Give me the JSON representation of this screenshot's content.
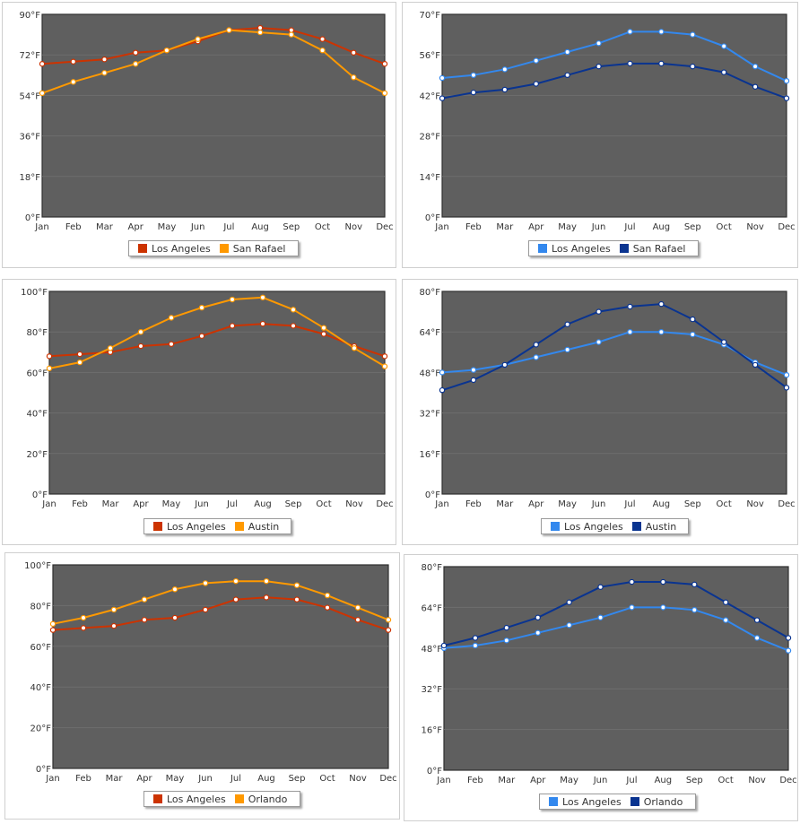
{
  "chart_data": [
    {
      "type": "line",
      "categories": [
        "Jan",
        "Feb",
        "Mar",
        "Apr",
        "May",
        "Jun",
        "Jul",
        "Aug",
        "Sep",
        "Oct",
        "Nov",
        "Dec"
      ],
      "ylim": [
        0,
        90
      ],
      "yticks": [
        "0°F",
        "18°F",
        "36°F",
        "54°F",
        "72°F",
        "90°F"
      ],
      "series": [
        {
          "name": "Los Angeles",
          "color": "#cc3300",
          "values": [
            68,
            69,
            70,
            73,
            74,
            78,
            83,
            84,
            83,
            79,
            73,
            68
          ]
        },
        {
          "name": "San Rafael",
          "color": "#ff9900",
          "values": [
            55,
            60,
            64,
            68,
            74,
            79,
            83,
            82,
            81,
            74,
            62,
            55
          ]
        }
      ]
    },
    {
      "type": "line",
      "categories": [
        "Jan",
        "Feb",
        "Mar",
        "Apr",
        "May",
        "Jun",
        "Jul",
        "Aug",
        "Sep",
        "Oct",
        "Nov",
        "Dec"
      ],
      "ylim": [
        0,
        70
      ],
      "yticks": [
        "0°F",
        "14°F",
        "28°F",
        "42°F",
        "56°F",
        "70°F"
      ],
      "series": [
        {
          "name": "Los Angeles",
          "color": "#3388ee",
          "values": [
            48,
            49,
            51,
            54,
            57,
            60,
            64,
            64,
            63,
            59,
            52,
            47
          ]
        },
        {
          "name": "San Rafael",
          "color": "#0a3490",
          "values": [
            41,
            43,
            44,
            46,
            49,
            52,
            53,
            53,
            52,
            50,
            45,
            41
          ]
        }
      ]
    },
    {
      "type": "line",
      "categories": [
        "Jan",
        "Feb",
        "Mar",
        "Apr",
        "May",
        "Jun",
        "Jul",
        "Aug",
        "Sep",
        "Oct",
        "Nov",
        "Dec"
      ],
      "ylim": [
        0,
        100
      ],
      "yticks": [
        "0°F",
        "20°F",
        "40°F",
        "60°F",
        "80°F",
        "100°F"
      ],
      "series": [
        {
          "name": "Los Angeles",
          "color": "#cc3300",
          "values": [
            68,
            69,
            70,
            73,
            74,
            78,
            83,
            84,
            83,
            79,
            73,
            68
          ]
        },
        {
          "name": "Austin",
          "color": "#ff9900",
          "values": [
            62,
            65,
            72,
            80,
            87,
            92,
            96,
            97,
            91,
            82,
            72,
            63
          ]
        }
      ]
    },
    {
      "type": "line",
      "categories": [
        "Jan",
        "Feb",
        "Mar",
        "Apr",
        "May",
        "Jun",
        "Jul",
        "Aug",
        "Sep",
        "Oct",
        "Nov",
        "Dec"
      ],
      "ylim": [
        0,
        80
      ],
      "yticks": [
        "0°F",
        "16°F",
        "32°F",
        "48°F",
        "64°F",
        "80°F"
      ],
      "series": [
        {
          "name": "Los Angeles",
          "color": "#3388ee",
          "values": [
            48,
            49,
            51,
            54,
            57,
            60,
            64,
            64,
            63,
            59,
            52,
            47
          ]
        },
        {
          "name": "Austin",
          "color": "#0a3490",
          "values": [
            41,
            45,
            51,
            59,
            67,
            72,
            74,
            75,
            69,
            60,
            51,
            42
          ]
        }
      ]
    },
    {
      "type": "line",
      "categories": [
        "Jan",
        "Feb",
        "Mar",
        "Apr",
        "May",
        "Jun",
        "Jul",
        "Aug",
        "Sep",
        "Oct",
        "Nov",
        "Dec"
      ],
      "ylim": [
        0,
        100
      ],
      "yticks": [
        "0°F",
        "20°F",
        "40°F",
        "60°F",
        "80°F",
        "100°F"
      ],
      "series": [
        {
          "name": "Los Angeles",
          "color": "#cc3300",
          "values": [
            68,
            69,
            70,
            73,
            74,
            78,
            83,
            84,
            83,
            79,
            73,
            68
          ]
        },
        {
          "name": "Orlando",
          "color": "#ff9900",
          "values": [
            71,
            74,
            78,
            83,
            88,
            91,
            92,
            92,
            90,
            85,
            79,
            73
          ]
        }
      ]
    },
    {
      "type": "line",
      "categories": [
        "Jan",
        "Feb",
        "Mar",
        "Apr",
        "May",
        "Jun",
        "Jul",
        "Aug",
        "Sep",
        "Oct",
        "Nov",
        "Dec"
      ],
      "ylim": [
        0,
        80
      ],
      "yticks": [
        "0°F",
        "16°F",
        "32°F",
        "48°F",
        "64°F",
        "80°F"
      ],
      "series": [
        {
          "name": "Los Angeles",
          "color": "#3388ee",
          "values": [
            48,
            49,
            51,
            54,
            57,
            60,
            64,
            64,
            63,
            59,
            52,
            47
          ]
        },
        {
          "name": "Orlando",
          "color": "#0a3490",
          "values": [
            49,
            52,
            56,
            60,
            66,
            72,
            74,
            74,
            73,
            66,
            59,
            52
          ]
        }
      ]
    }
  ]
}
